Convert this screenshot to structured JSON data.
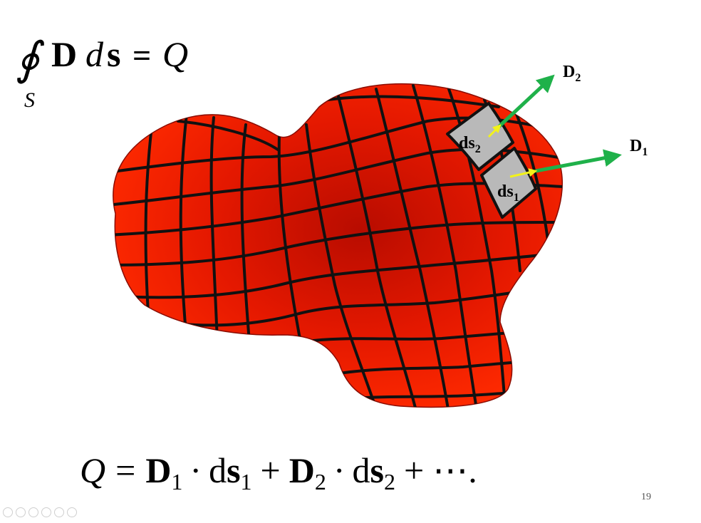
{
  "top_formula": {
    "integral": "∮",
    "D": "D",
    "d": "d",
    "s": "s",
    "equals": "=",
    "Q": "Q",
    "subscript_S": "S"
  },
  "labels": {
    "D1_main": "D",
    "D1_sub": "1",
    "D2_main": "D",
    "D2_sub": "2",
    "ds1_main": "ds",
    "ds1_sub": "1",
    "ds2_main": "ds",
    "ds2_sub": "2"
  },
  "bottom_formula": {
    "Q": "Q",
    "equals": "=",
    "D": "D",
    "sub1": "1",
    "sub2": "2",
    "dot": "·",
    "d": "d",
    "s": "s",
    "plus": "+",
    "ellipsis": "⋯."
  },
  "page_number": "19",
  "colors": {
    "surface": "#ee1c00",
    "grid": "#111111",
    "patch": "#b9b9b9",
    "arrow_green": "#1fb14a",
    "arrow_yellow": "#f2f21a"
  }
}
